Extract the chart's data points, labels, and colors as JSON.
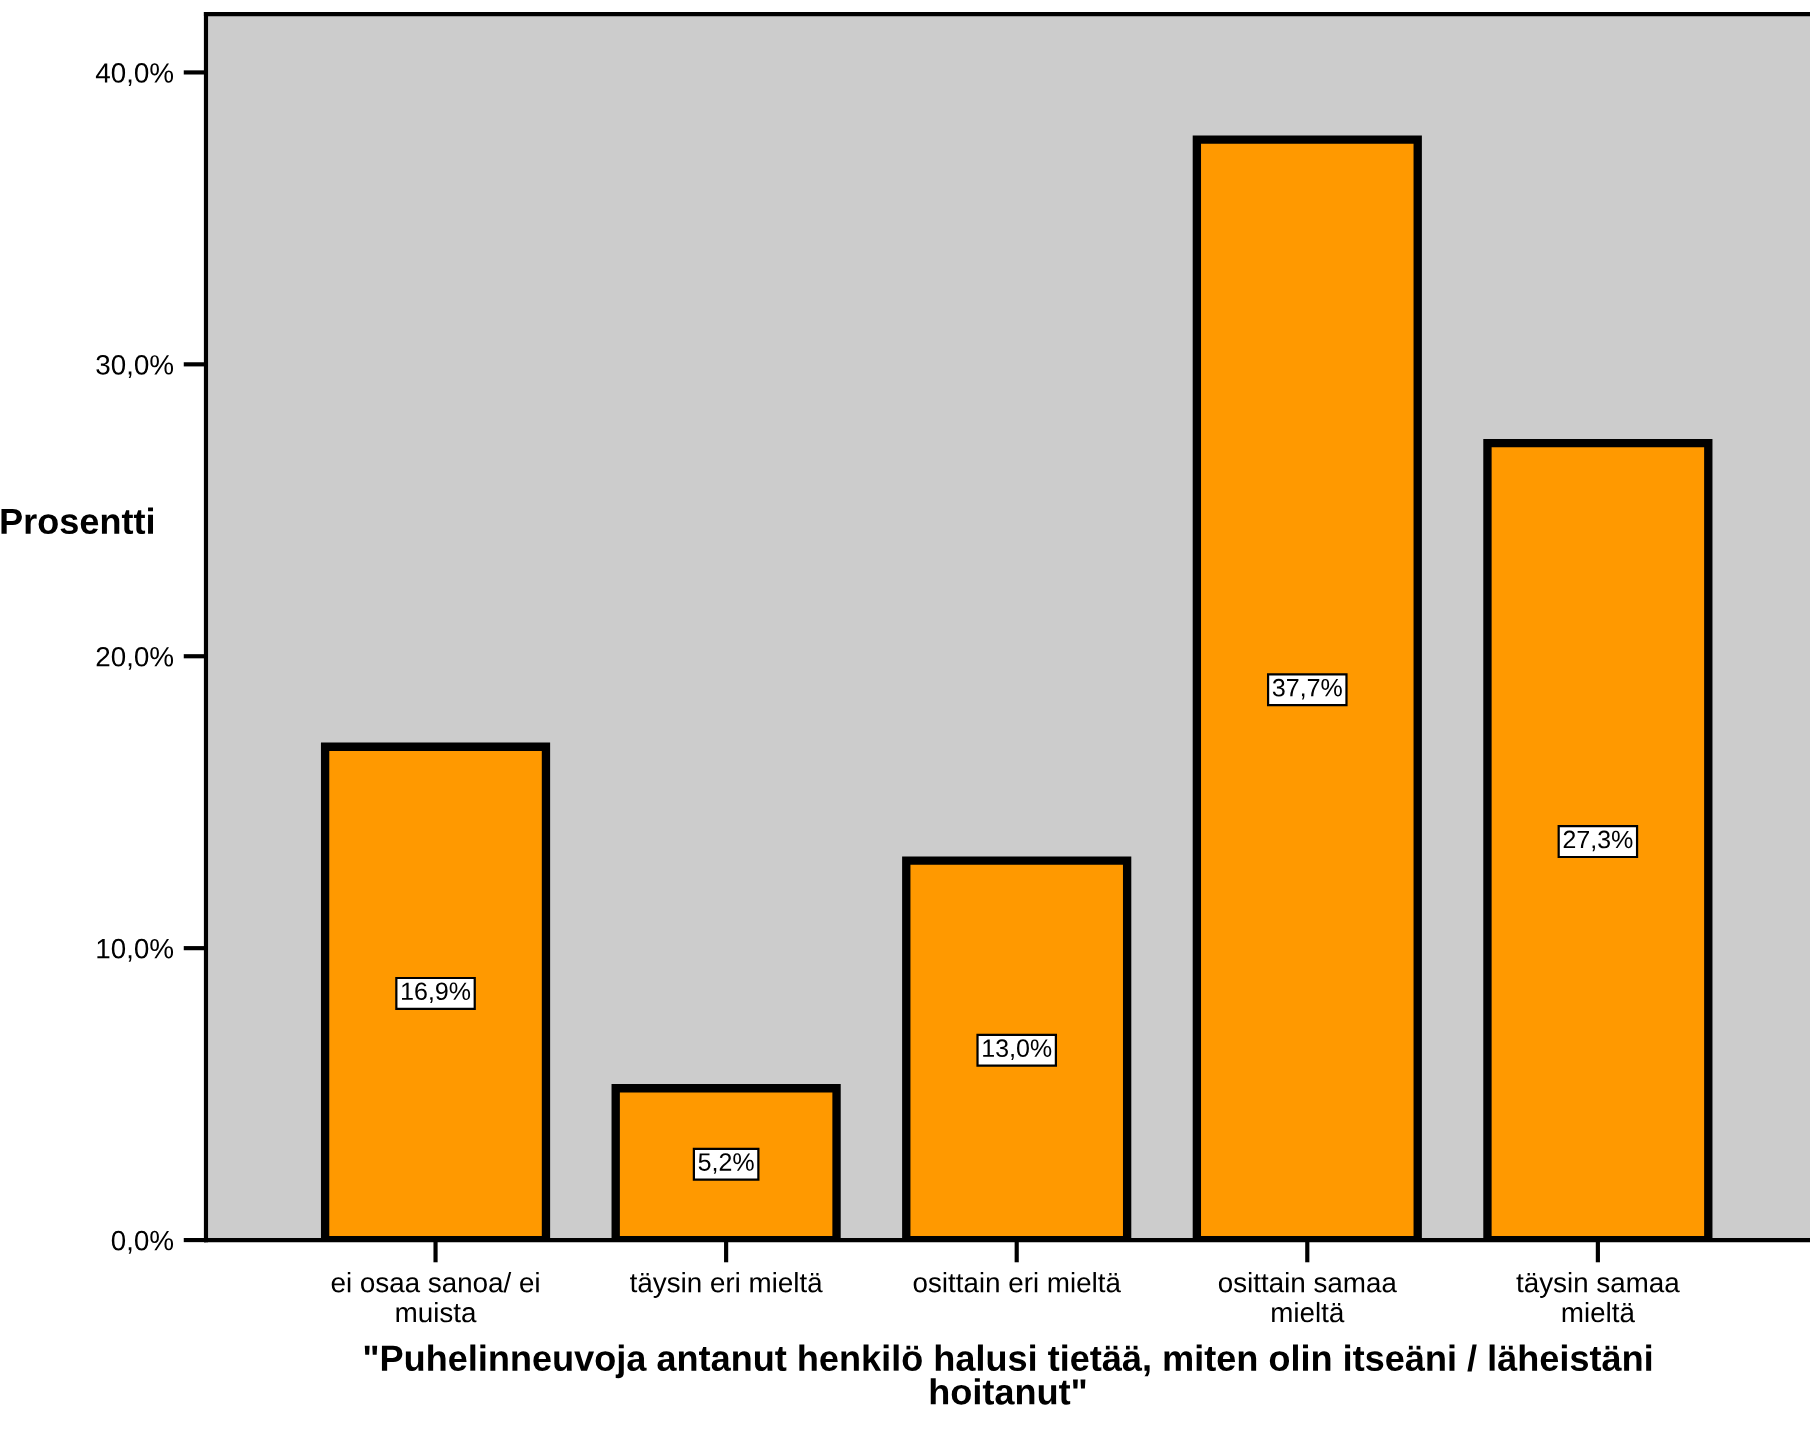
{
  "chart_data": {
    "type": "bar",
    "xlabel": "\"Puhelinneuvoja antanut henkilö halusi tietää, miten olin itseäni / läheistäni\nhoitanut\"",
    "ylabel": "Prosentti",
    "categories": [
      "ei osaa sanoa/ ei\nmuista",
      "täysin eri mieltä",
      "osittain eri mieltä",
      "osittain samaa\nmieltä",
      "täysin samaa\nmieltä"
    ],
    "values": [
      16.9,
      5.2,
      13.0,
      37.7,
      27.3
    ],
    "value_labels": [
      "16,9%",
      "5,2%",
      "13,0%",
      "37,7%",
      "27,3%"
    ],
    "color": "#ff9900",
    "ylim": [
      0,
      42
    ],
    "yticks": [
      {
        "value": 0,
        "label": "0,0%"
      },
      {
        "value": 10,
        "label": "10,0%"
      },
      {
        "value": 20,
        "label": "20,0%"
      },
      {
        "value": 30,
        "label": "30,0%"
      },
      {
        "value": 40,
        "label": "40,0%"
      }
    ],
    "grid": false,
    "legend": false
  }
}
